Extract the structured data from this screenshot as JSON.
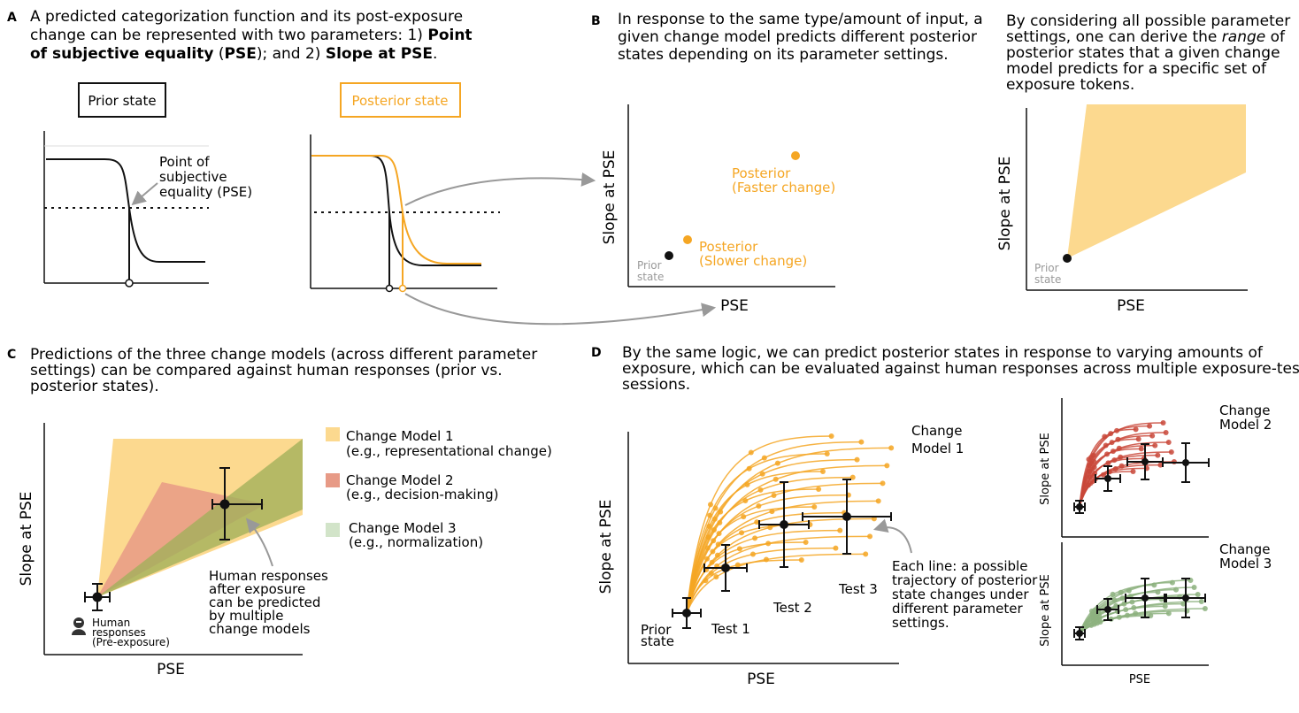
{
  "colors": {
    "orange": "#f5a623",
    "orange_fill": "#fcd98f",
    "red": "#c9483a",
    "red_fill": "#e79a86",
    "green": "#8db27f",
    "green_dark": "#a0b05a",
    "green_fill": "#d2e4c9",
    "gray": "#999999",
    "black": "#111111"
  },
  "panelA": {
    "letter": "A",
    "caption_lines": [
      [
        "A predicted categorization function and its post-exposure"
      ],
      [
        "change can be represented with two parameters: 1) ",
        "Point"
      ],
      [
        "of subjective equality",
        " (",
        "PSE",
        "); and 2) ",
        "Slope at PSE",
        "."
      ]
    ],
    "prior_label": "Prior state",
    "posterior_label": "Posterior state",
    "pse_annotation": [
      "Point of",
      "subjective",
      "equality (PSE)"
    ]
  },
  "panelB": {
    "letter": "B",
    "caption_lines": [
      "In response to the same type/amount of input, a",
      "given change model predicts different posterior",
      "states depending on its parameter settings."
    ],
    "caption2_lines": [
      "By considering all possible parameter",
      "settings, one can derive the ",
      "range",
      " of",
      "posterior states that a given change",
      "model predicts for a specific set of",
      "exposure tokens."
    ],
    "ylabel": "Slope at PSE",
    "xlabel": "PSE",
    "prior_point_label": [
      "Prior",
      "state"
    ],
    "posterior_fast": [
      "Posterior",
      "(Faster change)"
    ],
    "posterior_slow": [
      "Posterior",
      "(Slower change)"
    ]
  },
  "panelC": {
    "letter": "C",
    "caption_lines": [
      "Predictions of the three change models (across different parameter",
      "settings) can be compared against human responses (prior vs.",
      "posterior states)."
    ],
    "ylabel": "Slope at PSE",
    "xlabel": "PSE",
    "legend": [
      {
        "name": "Change Model 1",
        "desc": "(e.g., representational change)"
      },
      {
        "name": "Change Model 2",
        "desc": "(e.g., decision-making)"
      },
      {
        "name": "Change Model 3",
        "desc": "(e.g., normalization)"
      }
    ],
    "annotation": [
      "Human responses",
      "after exposure",
      "can be predicted",
      "by multiple",
      "change models"
    ],
    "human_label": [
      "Human",
      "responses",
      "(Pre-exposure)"
    ]
  },
  "panelD": {
    "letter": "D",
    "caption_lines": [
      "By the same logic, we can predict posterior states in response to varying amounts of",
      "exposure, which can be evaluated against human responses across multiple exposure-test",
      "sessions."
    ],
    "ylabel": "Slope at PSE",
    "xlabel": "PSE",
    "model1_label": [
      "Change",
      "Model 1"
    ],
    "model2_label": [
      "Change",
      "Model 2"
    ],
    "model3_label": [
      "Change",
      "Model 3"
    ],
    "test_labels": [
      "Test 1",
      "Test 2",
      "Test 3"
    ],
    "prior_label": [
      "Prior",
      "state"
    ],
    "annotation": [
      "Each line: a possible",
      "trajectory of posterior",
      "state changes under",
      "different parameter",
      "settings."
    ]
  }
}
